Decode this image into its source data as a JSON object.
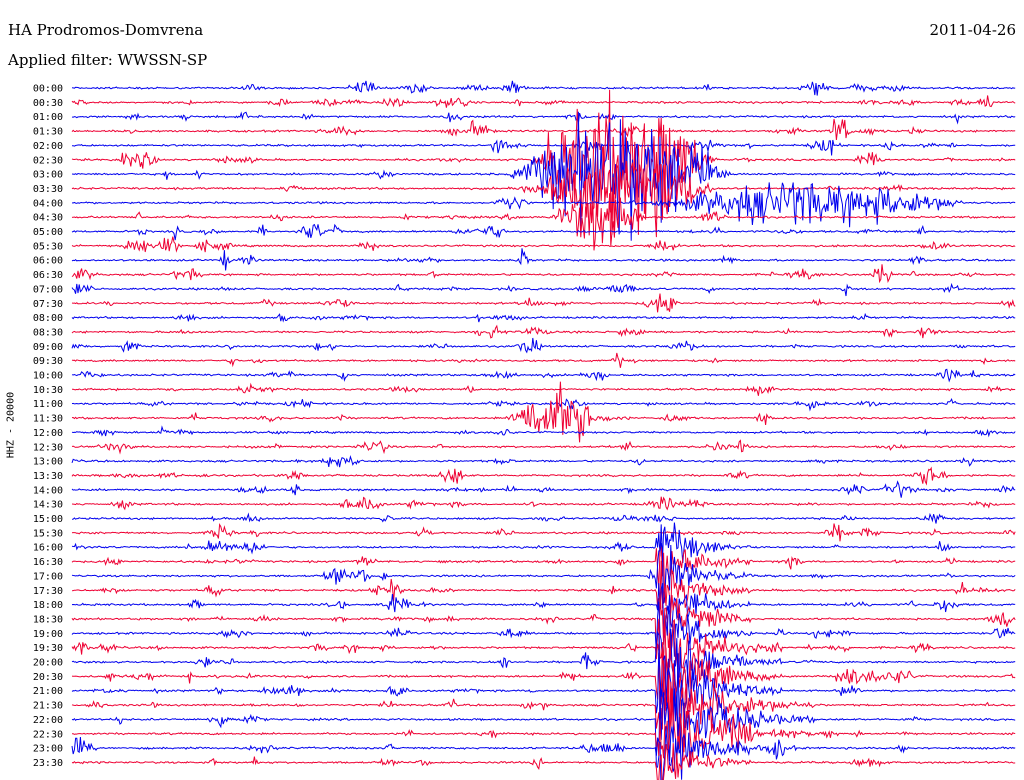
{
  "header": {
    "station": "HA Prodromos-Domvrena",
    "filter": "Applied filter: WWSSN-SP",
    "date": "2011-04-26",
    "channel": "HHZ - 20000"
  },
  "colors": {
    "even_trace": "#0000ee",
    "odd_trace": "#ee0033",
    "axis_text": "#000000"
  },
  "chart_data": {
    "type": "line",
    "title": "HA Prodromos-Domvrena",
    "subtitle": "Applied filter: WWSSN-SP",
    "ylabel": "HHZ - 20000",
    "xlabel": "",
    "grid": false,
    "legend": "none",
    "date": "2011-04-26",
    "line_minutes": 30,
    "series": [
      {
        "name": "blue",
        "lines": [
          "00:00",
          "01:00",
          "02:00",
          "03:00",
          "04:00",
          "05:00",
          "06:00",
          "07:00",
          "08:00",
          "09:00",
          "10:00",
          "11:00",
          "12:00",
          "13:00",
          "14:00",
          "15:00",
          "16:00",
          "17:00",
          "18:00",
          "19:00",
          "20:00",
          "21:00",
          "22:00",
          "23:00"
        ]
      },
      {
        "name": "red",
        "lines": [
          "00:30",
          "01:30",
          "02:30",
          "03:30",
          "04:30",
          "05:30",
          "06:30",
          "07:30",
          "08:30",
          "09:30",
          "10:30",
          "11:30",
          "12:30",
          "13:30",
          "14:30",
          "15:30",
          "16:30",
          "17:30",
          "18:30",
          "19:30",
          "20:30",
          "21:30",
          "22:30",
          "23:30"
        ]
      }
    ],
    "time_labels": [
      "00:00",
      "00:30",
      "01:00",
      "01:30",
      "02:00",
      "02:30",
      "03:00",
      "03:30",
      "04:00",
      "04:30",
      "05:00",
      "05:30",
      "06:00",
      "06:30",
      "07:00",
      "07:30",
      "08:00",
      "08:30",
      "09:00",
      "09:30",
      "10:00",
      "10:30",
      "11:00",
      "11:30",
      "12:00",
      "12:30",
      "13:00",
      "13:30",
      "14:00",
      "14:30",
      "15:00",
      "15:30",
      "16:00",
      "16:30",
      "17:00",
      "17:30",
      "18:00",
      "18:30",
      "19:00",
      "19:30",
      "20:00",
      "20:30",
      "21:00",
      "21:30",
      "22:00",
      "22:30",
      "23:00",
      "23:30"
    ],
    "events": [
      {
        "line": "02:30",
        "minute": 14.5,
        "duration_min": 6,
        "amp": 1.9,
        "kind": "earthquake-coda"
      },
      {
        "line": "03:00",
        "minute": 14.0,
        "duration_min": 7,
        "amp": 1.8,
        "kind": "earthquake-coda"
      },
      {
        "line": "03:30",
        "minute": 14.5,
        "duration_min": 6,
        "amp": 1.3,
        "kind": "earthquake-coda"
      },
      {
        "line": "04:00",
        "minute": 18.5,
        "duration_min": 10,
        "amp": 0.6,
        "kind": "coda"
      },
      {
        "line": "04:30",
        "minute": 15.2,
        "duration_min": 3,
        "amp": 0.8,
        "kind": "coda"
      },
      {
        "line": "11:30",
        "minute": 13.8,
        "duration_min": 3,
        "amp": 0.9,
        "kind": "burst"
      },
      {
        "line": "16:00",
        "minute": 18.6,
        "duration_min": 3,
        "amp": 1.2,
        "kind": "teleseism"
      },
      {
        "line": "16:30",
        "minute": 18.6,
        "duration_min": 3,
        "amp": 1.3,
        "kind": "teleseism"
      },
      {
        "line": "17:00",
        "minute": 18.6,
        "duration_min": 3,
        "amp": 1.4,
        "kind": "teleseism"
      },
      {
        "line": "17:30",
        "minute": 18.6,
        "duration_min": 3,
        "amp": 1.4,
        "kind": "teleseism"
      },
      {
        "line": "18:00",
        "minute": 18.6,
        "duration_min": 3,
        "amp": 1.5,
        "kind": "teleseism"
      },
      {
        "line": "18:30",
        "minute": 18.6,
        "duration_min": 3,
        "amp": 1.5,
        "kind": "teleseism"
      },
      {
        "line": "19:00",
        "minute": 18.6,
        "duration_min": 3,
        "amp": 1.6,
        "kind": "teleseism"
      },
      {
        "line": "19:30",
        "minute": 18.6,
        "duration_min": 4,
        "amp": 1.7,
        "kind": "teleseism"
      },
      {
        "line": "20:00",
        "minute": 18.6,
        "duration_min": 4,
        "amp": 1.7,
        "kind": "teleseism"
      },
      {
        "line": "20:30",
        "minute": 18.6,
        "duration_min": 4,
        "amp": 1.8,
        "kind": "teleseism"
      },
      {
        "line": "21:00",
        "minute": 18.6,
        "duration_min": 4,
        "amp": 1.9,
        "kind": "teleseism"
      },
      {
        "line": "21:30",
        "minute": 18.6,
        "duration_min": 5,
        "amp": 2.0,
        "kind": "teleseism"
      },
      {
        "line": "22:00",
        "minute": 18.6,
        "duration_min": 5,
        "amp": 2.0,
        "kind": "teleseism"
      },
      {
        "line": "22:30",
        "minute": 18.6,
        "duration_min": 5,
        "amp": 1.8,
        "kind": "teleseism"
      },
      {
        "line": "23:00",
        "minute": 18.6,
        "duration_min": 4,
        "amp": 1.5,
        "kind": "teleseism"
      },
      {
        "line": "23:30",
        "minute": 18.6,
        "duration_min": 3,
        "amp": 1.3,
        "kind": "teleseism"
      }
    ]
  }
}
